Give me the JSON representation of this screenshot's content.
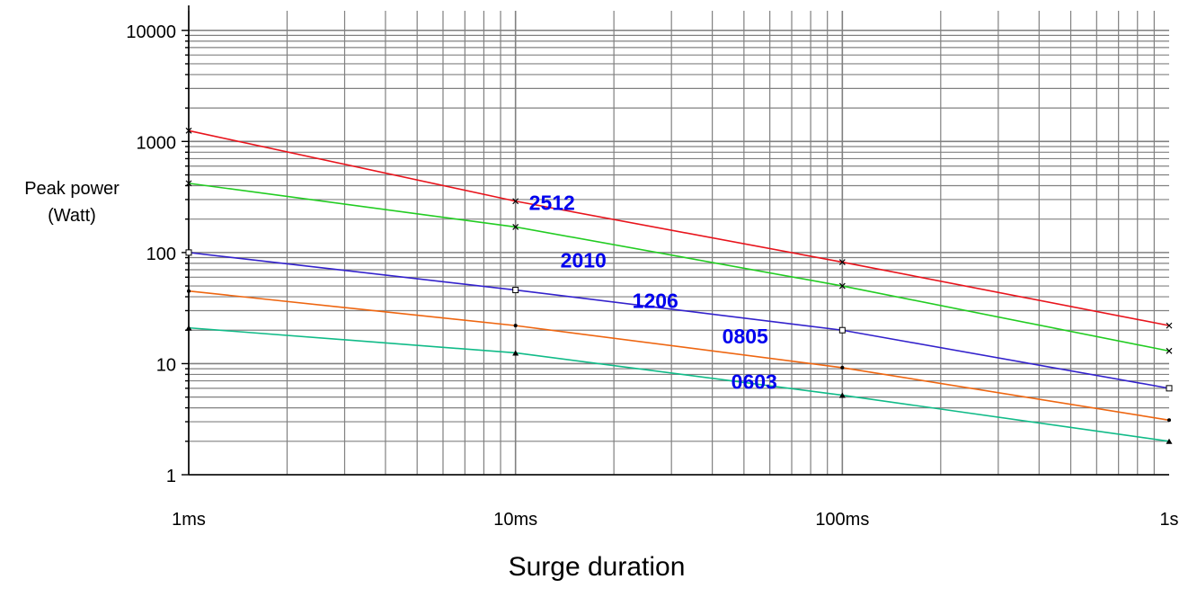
{
  "chart_data": {
    "type": "line",
    "title": "",
    "xlabel": "Surge duration",
    "ylabel": [
      "Peak power",
      "(Watt)"
    ],
    "x_scale": "log",
    "y_scale": "log",
    "xlim": [
      0.001,
      1
    ],
    "ylim": [
      1,
      15000
    ],
    "grid": true,
    "x_ticks": [
      {
        "value": 0.001,
        "label": "1ms"
      },
      {
        "value": 0.01,
        "label": "10ms"
      },
      {
        "value": 0.1,
        "label": "100ms"
      },
      {
        "value": 1,
        "label": "1s"
      }
    ],
    "y_ticks": [
      {
        "value": 1,
        "label": "1"
      },
      {
        "value": 10,
        "label": "10"
      },
      {
        "value": 100,
        "label": "100"
      },
      {
        "value": 1000,
        "label": "1000"
      },
      {
        "value": 10000,
        "label": "10000"
      }
    ],
    "series": [
      {
        "name": "2512",
        "color": "#e8141c",
        "marker": "x",
        "x": [
          0.001,
          0.01,
          0.1,
          1
        ],
        "y": [
          1250,
          290,
          82,
          22
        ]
      },
      {
        "name": "2010",
        "color": "#22cc22",
        "marker": "x",
        "x": [
          0.001,
          0.01,
          0.1,
          1
        ],
        "y": [
          420,
          170,
          50,
          13
        ]
      },
      {
        "name": "1206",
        "color": "#3322cc",
        "marker": "square",
        "x": [
          0.001,
          0.01,
          0.1,
          1
        ],
        "y": [
          100,
          46,
          20,
          6
        ]
      },
      {
        "name": "0805",
        "color": "#ee6611",
        "marker": "dot",
        "x": [
          0.001,
          0.01,
          0.1,
          1
        ],
        "y": [
          45,
          22,
          9.2,
          3.1
        ]
      },
      {
        "name": "0603",
        "color": "#11bb88",
        "marker": "triangle",
        "x": [
          0.001,
          0.01,
          0.1,
          1
        ],
        "y": [
          21,
          12.5,
          5.2,
          2
        ]
      }
    ]
  }
}
